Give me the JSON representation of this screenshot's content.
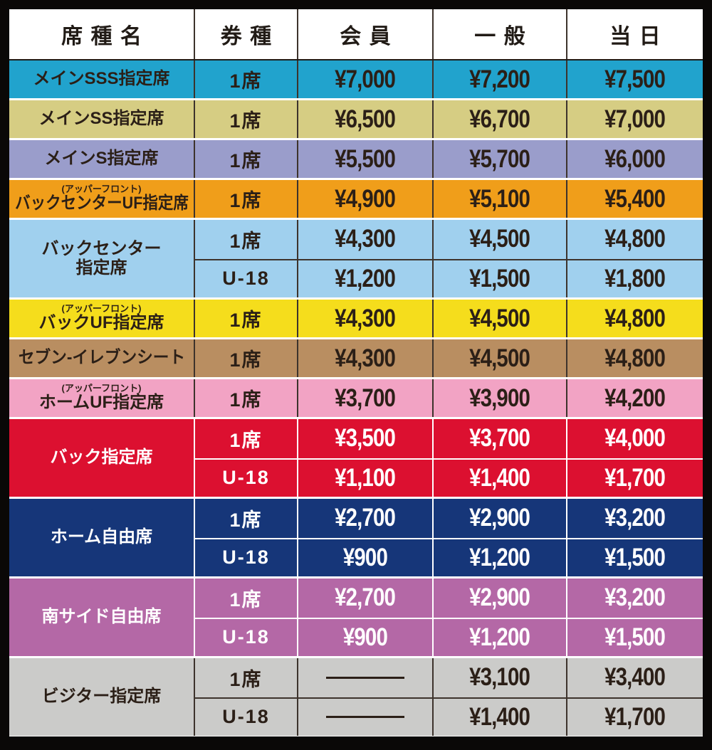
{
  "header": {
    "columns": [
      "席種名",
      "券種",
      "会員",
      "一般",
      "当日"
    ]
  },
  "colors": {
    "frame_bg": "#0a0807",
    "gap_color": "#ffffff",
    "text_dark": "#2b1f17",
    "text_light": "#ffffff",
    "line_dark": "#3d332c",
    "line_light": "#ffffff"
  },
  "rows": [
    {
      "id": "main-sss",
      "color": "#21a3cd",
      "scheme": "light",
      "sub": "",
      "name_lines": [
        "メインSSS指定席"
      ],
      "tickets": [
        {
          "type": "1席",
          "member": "¥7,000",
          "general": "¥7,200",
          "day": "¥7,500"
        }
      ]
    },
    {
      "id": "main-ss",
      "color": "#d6cd83",
      "scheme": "light",
      "sub": "",
      "name_lines": [
        "メインSS指定席"
      ],
      "tickets": [
        {
          "type": "1席",
          "member": "¥6,500",
          "general": "¥6,700",
          "day": "¥7,000"
        }
      ]
    },
    {
      "id": "main-s",
      "color": "#9a9dcb",
      "scheme": "light",
      "sub": "",
      "name_lines": [
        "メインS指定席"
      ],
      "tickets": [
        {
          "type": "1席",
          "member": "¥5,500",
          "general": "¥5,700",
          "day": "¥6,000"
        }
      ]
    },
    {
      "id": "back-center-uf",
      "color": "#f09e1a",
      "scheme": "light",
      "sub": "(アッパーフロント)",
      "name_lines": [
        "バックセンターUF指定席"
      ],
      "tickets": [
        {
          "type": "1席",
          "member": "¥4,900",
          "general": "¥5,100",
          "day": "¥5,400"
        }
      ]
    },
    {
      "id": "back-center",
      "color": "#a0d0ee",
      "scheme": "light",
      "sub": "",
      "name_lines": [
        "バックセンター",
        "指定席"
      ],
      "tickets": [
        {
          "type": "1席",
          "member": "¥4,300",
          "general": "¥4,500",
          "day": "¥4,800"
        },
        {
          "type": "U-18",
          "member": "¥1,200",
          "general": "¥1,500",
          "day": "¥1,800"
        }
      ]
    },
    {
      "id": "back-uf",
      "color": "#f5dd1c",
      "scheme": "light",
      "sub": "(アッパーフロント)",
      "name_lines": [
        "バックUF指定席"
      ],
      "tickets": [
        {
          "type": "1席",
          "member": "¥4,300",
          "general": "¥4,500",
          "day": "¥4,800"
        }
      ]
    },
    {
      "id": "seven-eleven-seat",
      "color": "#b98e61",
      "scheme": "light",
      "sub": "",
      "name_lines": [
        "セブン-イレブンシート"
      ],
      "tickets": [
        {
          "type": "1席",
          "member": "¥4,300",
          "general": "¥4,500",
          "day": "¥4,800"
        }
      ]
    },
    {
      "id": "home-uf",
      "color": "#f2a3c4",
      "scheme": "light",
      "sub": "(アッパーフロント)",
      "name_lines": [
        "ホームUF指定席"
      ],
      "tickets": [
        {
          "type": "1席",
          "member": "¥3,700",
          "general": "¥3,900",
          "day": "¥4,200"
        }
      ]
    },
    {
      "id": "back",
      "color": "#dc1030",
      "scheme": "dark",
      "sub": "",
      "name_lines": [
        "バック指定席"
      ],
      "tickets": [
        {
          "type": "1席",
          "member": "¥3,500",
          "general": "¥3,700",
          "day": "¥4,000"
        },
        {
          "type": "U-18",
          "member": "¥1,100",
          "general": "¥1,400",
          "day": "¥1,700"
        }
      ]
    },
    {
      "id": "home-free",
      "color": "#163679",
      "scheme": "dark",
      "sub": "",
      "name_lines": [
        "ホーム自由席"
      ],
      "tickets": [
        {
          "type": "1席",
          "member": "¥2,700",
          "general": "¥2,900",
          "day": "¥3,200"
        },
        {
          "type": "U-18",
          "member": "¥900",
          "general": "¥1,200",
          "day": "¥1,500"
        }
      ]
    },
    {
      "id": "south-side-free",
      "color": "#b468a6",
      "scheme": "dark",
      "sub": "",
      "name_lines": [
        "南サイド自由席"
      ],
      "tickets": [
        {
          "type": "1席",
          "member": "¥2,700",
          "general": "¥2,900",
          "day": "¥3,200"
        },
        {
          "type": "U-18",
          "member": "¥900",
          "general": "¥1,200",
          "day": "¥1,500"
        }
      ]
    },
    {
      "id": "visitor",
      "color": "#cbcbc9",
      "scheme": "light",
      "sub": "",
      "name_lines": [
        "ビジター指定席"
      ],
      "tickets": [
        {
          "type": "1席",
          "member": "—",
          "general": "¥3,100",
          "day": "¥3,400"
        },
        {
          "type": "U-18",
          "member": "—",
          "general": "¥1,400",
          "day": "¥1,700"
        }
      ]
    }
  ]
}
